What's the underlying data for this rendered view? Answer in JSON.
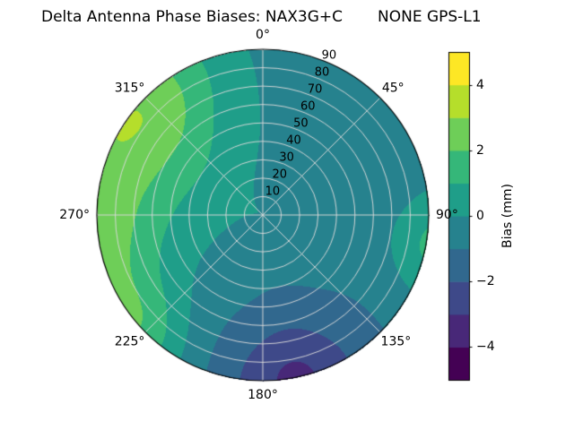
{
  "chart_data": {
    "type": "polar_contour",
    "title": "Delta Antenna Phase Biases: NAX3G+C        NONE GPS-L1",
    "title_left": "Delta Antenna Phase Biases: NAX3G+C",
    "title_right": "NONE GPS-L1",
    "theta_direction": "clockwise",
    "theta_zero": "top",
    "angular_ticks": [
      {
        "angle_deg": 0,
        "label": "0°"
      },
      {
        "angle_deg": 45,
        "label": "45°"
      },
      {
        "angle_deg": 90,
        "label": "90°"
      },
      {
        "angle_deg": 135,
        "label": "135°"
      },
      {
        "angle_deg": 180,
        "label": "180°"
      },
      {
        "angle_deg": 225,
        "label": "225°"
      },
      {
        "angle_deg": 270,
        "label": "270°"
      },
      {
        "angle_deg": 315,
        "label": "315°"
      }
    ],
    "radial_ticks": [
      {
        "value": 10,
        "label": "10"
      },
      {
        "value": 20,
        "label": "20"
      },
      {
        "value": 30,
        "label": "30"
      },
      {
        "value": 40,
        "label": "40"
      },
      {
        "value": 50,
        "label": "50"
      },
      {
        "value": 60,
        "label": "60"
      },
      {
        "value": 70,
        "label": "70"
      },
      {
        "value": 80,
        "label": "80"
      },
      {
        "value": 90,
        "label": "90"
      }
    ],
    "r_axis": {
      "min": 0,
      "max": 90,
      "label_angle_deg": 22.5
    },
    "grid_color": "#d9d9d9",
    "colorbar": {
      "label": "Bias (mm)",
      "vmin": -5,
      "vmax": 5,
      "level_step": 1,
      "ticks": [
        {
          "value": 4,
          "label": "4"
        },
        {
          "value": 2,
          "label": "2"
        },
        {
          "value": 0,
          "label": "0"
        },
        {
          "value": -2,
          "label": "−2"
        },
        {
          "value": -4,
          "label": "−4"
        }
      ],
      "colors": [
        "#440154",
        "#482878",
        "#3e4989",
        "#31688e",
        "#26828e",
        "#1f9e89",
        "#35b779",
        "#6ece58",
        "#b5de2b",
        "#fde725"
      ]
    },
    "field": {
      "base": -0.45,
      "blobs": [
        {
          "az": 292,
          "r": 1.02,
          "amp": 2.4,
          "saz": 26,
          "sr": 0.34
        },
        {
          "az": 318,
          "r": 0.98,
          "amp": 1.4,
          "saz": 18,
          "sr": 0.3
        },
        {
          "az": 255,
          "r": 1.02,
          "amp": 1.6,
          "saz": 18,
          "sr": 0.26
        },
        {
          "az": 228,
          "r": 1.04,
          "amp": 2.0,
          "saz": 14,
          "sr": 0.22
        },
        {
          "az": 300,
          "r": 0.45,
          "amp": 0.7,
          "saz": 55,
          "sr": 0.4
        },
        {
          "az": 100,
          "r": 1.06,
          "amp": 2.0,
          "saz": 13,
          "sr": 0.2
        },
        {
          "az": 168,
          "r": 1.02,
          "amp": -1.9,
          "saz": 15,
          "sr": 0.24
        },
        {
          "az": 182,
          "r": 0.92,
          "amp": -0.75,
          "saz": 30,
          "sr": 0.38
        },
        {
          "az": 120,
          "r": 0.75,
          "amp": -0.35,
          "saz": 50,
          "sr": 0.5
        }
      ]
    }
  }
}
